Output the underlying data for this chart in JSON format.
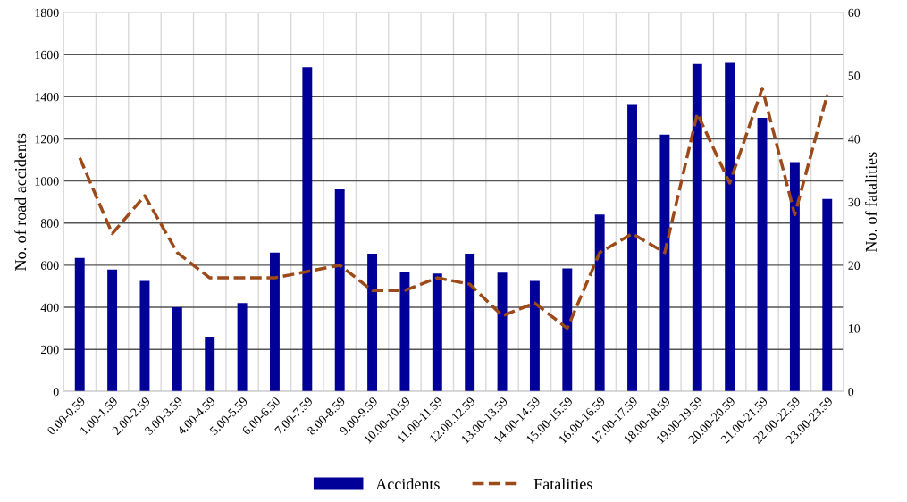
{
  "chart_data": {
    "type": "bar",
    "ylabel": "No. of road accidents",
    "y2label": "No. of fatalities",
    "categories": [
      "0.00-0.59",
      "1.00-1.59",
      "2.00-2.59",
      "3.00-3.59",
      "4.00-4.59",
      "5.00-5.59",
      "6.00-6.50",
      "7.00-7.59",
      "8.00-8.59",
      "9.00-9.59",
      "10.00-10.59",
      "11.00-11.59",
      "12.00.12.59",
      "13.00-13.59",
      "14.00-14.59",
      "15.00-15.59",
      "16.00-16.59",
      "17.00-17.59",
      "18.00-18.59",
      "19.00-19.59",
      "20.00-20.59",
      "21.00-21.59",
      "22.00-22.59",
      "23.00-23.59"
    ],
    "series": [
      {
        "name": "Accidents",
        "color": "#000099",
        "values": [
          635,
          580,
          525,
          400,
          260,
          420,
          660,
          1540,
          960,
          655,
          570,
          560,
          655,
          565,
          525,
          585,
          840,
          1365,
          1220,
          1555,
          1565,
          1300,
          1090,
          915
        ]
      },
      {
        "name": "Fatalities",
        "type": "line",
        "axis": "y2",
        "color": "#9c4a1a",
        "line_style": "dashed",
        "values": [
          37,
          25,
          31,
          22,
          18,
          18,
          18,
          19,
          20,
          16,
          16,
          18,
          17,
          12,
          14,
          10,
          22,
          25,
          22,
          44,
          33,
          48,
          28,
          47
        ]
      }
    ],
    "ylim": [
      0,
      1800
    ],
    "yticks": [
      0,
      200,
      400,
      600,
      800,
      1000,
      1200,
      1400,
      1600,
      1800
    ],
    "y2lim": [
      0,
      60
    ],
    "y2ticks": [
      0,
      10,
      20,
      30,
      40,
      50,
      60
    ],
    "grid": true,
    "legend": "bottom"
  }
}
